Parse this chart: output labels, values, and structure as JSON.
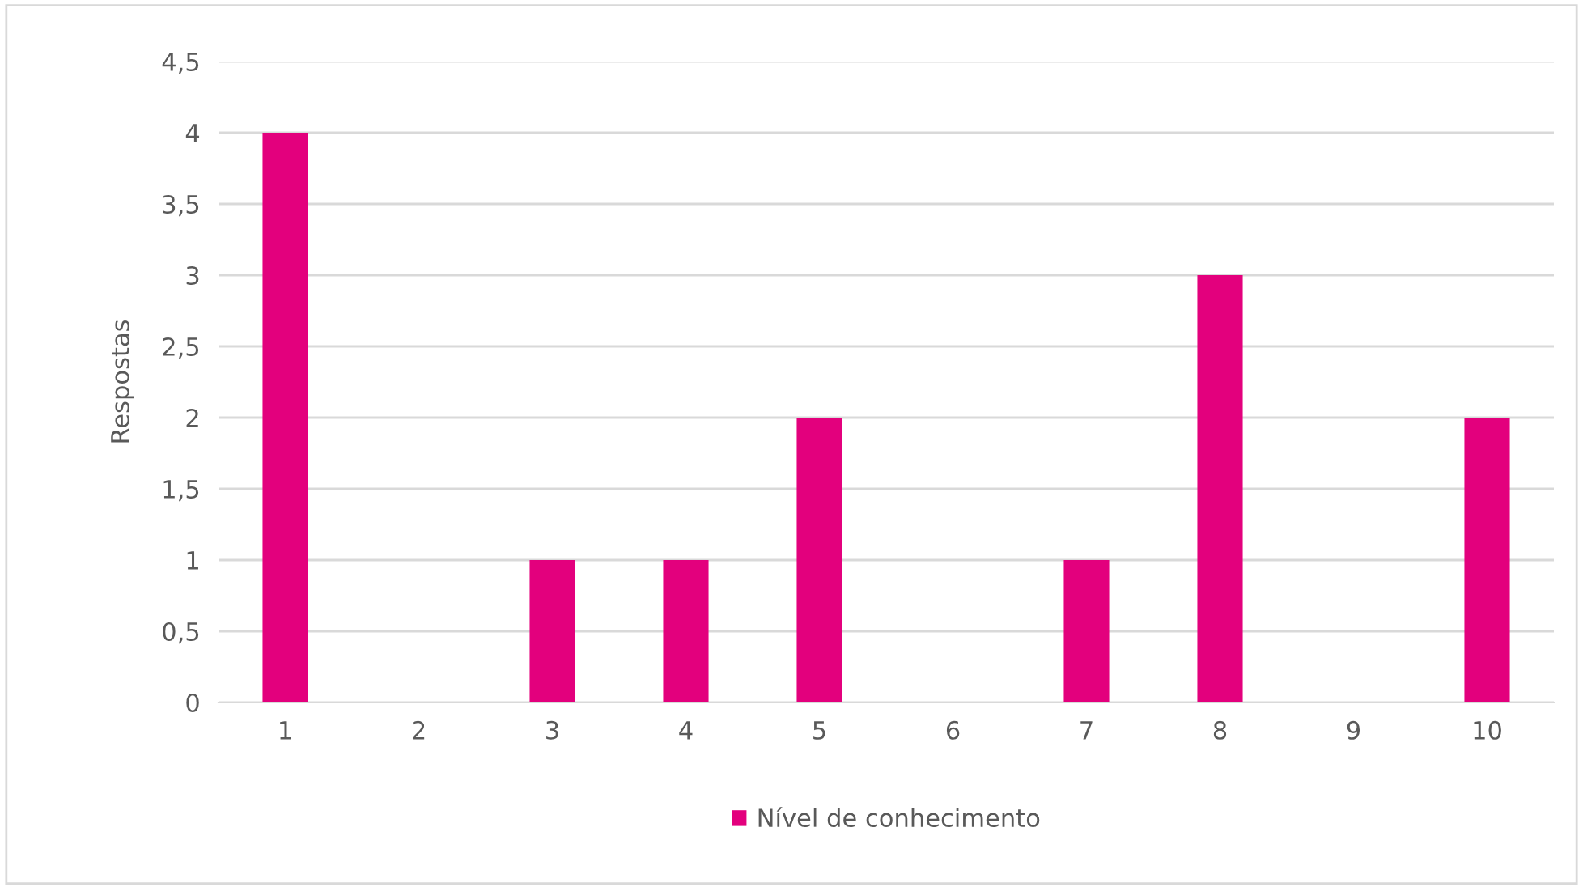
{
  "chart_data": {
    "type": "bar",
    "ylabel": "Respostas",
    "categories": [
      "1",
      "2",
      "3",
      "4",
      "5",
      "6",
      "7",
      "8",
      "9",
      "10"
    ],
    "series": [
      {
        "name": "Nível de conhecimento",
        "color": "#e3007d",
        "values": [
          4,
          0,
          1,
          1,
          2,
          0,
          1,
          3,
          0,
          2
        ]
      }
    ],
    "ylim": [
      0,
      4.5
    ],
    "yticks": [
      0,
      {
        "value": 0.5,
        "label": "0,5"
      },
      1,
      {
        "value": 1.5,
        "label": "1,5"
      },
      2,
      {
        "value": 2.5,
        "label": "2,5"
      },
      3,
      {
        "value": 3.5,
        "label": "3,5"
      },
      4,
      {
        "value": 4.5,
        "label": "4,5"
      }
    ],
    "grid": "y",
    "legend": "bottom"
  }
}
